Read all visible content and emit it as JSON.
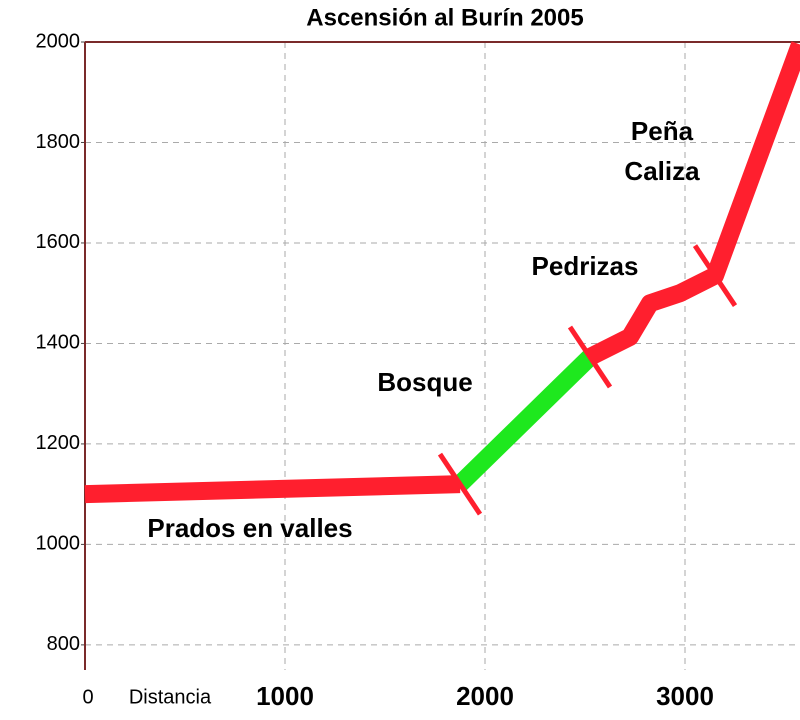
{
  "chart_data": {
    "type": "line",
    "title": "Ascensión al Burín 2005",
    "x_label": "Distancia",
    "x": [
      0,
      1875,
      2525,
      2725,
      2825,
      2975,
      3150,
      3575
    ],
    "series": [
      {
        "color": "#ff1f2e",
        "values": [
          1100,
          1120,
          null,
          null,
          null,
          null,
          null,
          null
        ]
      },
      {
        "color": "#1ee81e",
        "values": [
          null,
          1120,
          1373,
          null,
          null,
          null,
          null,
          null
        ]
      },
      {
        "color": "#ff1f2e",
        "values": [
          null,
          null,
          1373,
          1413,
          1480,
          1500,
          1535,
          1995
        ]
      }
    ],
    "segment_breaks": [
      1875,
      2525,
      3150
    ],
    "annotations": [
      "Prados en valles",
      "Bosque",
      "Pedrizas",
      "Peña",
      "Caliza"
    ],
    "xlim": [
      0,
      3575
    ],
    "xticks": [
      0,
      1000,
      2000,
      3000
    ],
    "ylim": [
      750,
      2000
    ],
    "yticks": [
      800,
      1000,
      1200,
      1400,
      1600,
      1800,
      2000
    ],
    "grid": true
  }
}
